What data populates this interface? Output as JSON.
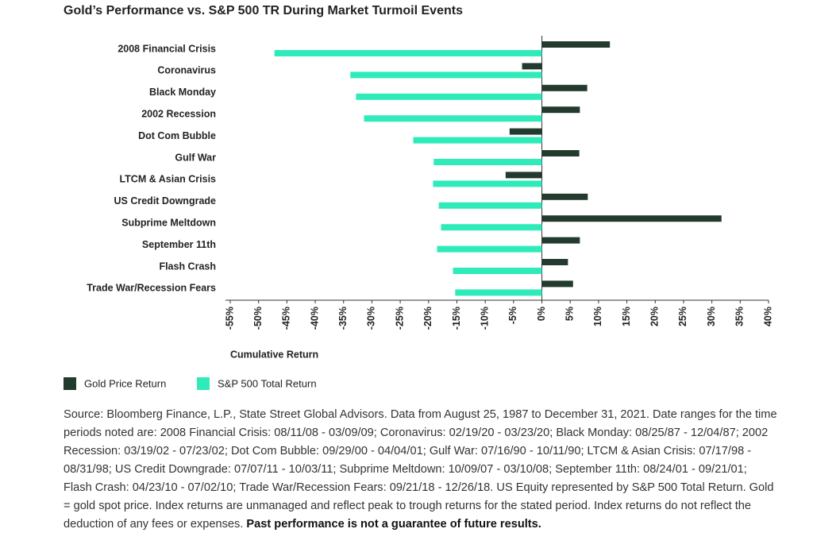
{
  "chart_data": {
    "type": "hbar",
    "title": "Gold’s Performance vs. S&P 500 TR During Market Turmoil Events",
    "categories": [
      "2008 Financial Crisis",
      "Coronavirus",
      "Black Monday",
      "2002 Recession",
      "Dot Com Bubble",
      "Gulf War",
      "LTCM & Asian Crisis",
      "US Credit Downgrade",
      "Subprime Meltdown",
      "September 11th",
      "Flash Crash",
      "Trade War/Recession Fears"
    ],
    "series": [
      {
        "name": "Gold Price Return",
        "color": "#233a2e",
        "values": [
          12,
          -3.5,
          8,
          6.7,
          -5.7,
          6.6,
          -6.4,
          8.1,
          31.7,
          6.7,
          4.6,
          5.5
        ]
      },
      {
        "name": "S&P 500 Total Return",
        "color": "#2febb9",
        "values": [
          -47.2,
          -33.8,
          -32.8,
          -31.4,
          -22.7,
          -19.1,
          -19.2,
          -18.2,
          -17.8,
          -18.5,
          -15.7,
          -15.3
        ]
      }
    ],
    "xlabel": "Cumulative Return",
    "xlim": [
      -55,
      40
    ],
    "xticks": [
      {
        "value": -55,
        "label": "-55%"
      },
      {
        "value": -50,
        "label": "-50%"
      },
      {
        "value": -45,
        "label": "-45%"
      },
      {
        "value": -40,
        "label": "-40%"
      },
      {
        "value": -35,
        "label": "-35%"
      },
      {
        "value": -30,
        "label": "-30%"
      },
      {
        "value": -25,
        "label": "-25%"
      },
      {
        "value": -20,
        "label": "-20%"
      },
      {
        "value": -15,
        "label": "-15%"
      },
      {
        "value": -10,
        "label": "-10%"
      },
      {
        "value": -5,
        "label": "-5%"
      },
      {
        "value": 0,
        "label": "0%"
      },
      {
        "value": 5,
        "label": "5%"
      },
      {
        "value": 10,
        "label": "10%"
      },
      {
        "value": 15,
        "label": "15%"
      },
      {
        "value": 20,
        "label": "20%"
      },
      {
        "value": 25,
        "label": "25%"
      },
      {
        "value": 30,
        "label": "30%"
      },
      {
        "value": 35,
        "label": "35%"
      },
      {
        "value": 40,
        "label": "40%"
      }
    ],
    "legend": "bottom-left"
  },
  "source": {
    "text": "Source: Bloomberg Finance, L.P., State Street Global Advisors. Data from August 25, 1987 to December 31, 2021. Date ranges for the time periods noted are: 2008 Financial Crisis: 08/11/08 - 03/09/09; Coronavirus: 02/19/20 - 03/23/20; Black Monday: 08/25/87 - 12/04/87; 2002 Recession: 03/19/02 - 07/23/02; Dot Com Bubble: 09/29/00 - 04/04/01; Gulf War: 07/16/90 - 10/11/90; LTCM & Asian Crisis: 07/17/98 - 08/31/98; US Credit Downgrade: 07/07/11 - 10/03/11; Subprime Meltdown: 10/09/07 - 03/10/08; September 11th: 08/24/01 - 09/21/01; Flash Crash: 04/23/10 - 07/02/10; Trade War/Recession Fears: 09/21/18 - 12/26/18. US Equity represented by S&P 500 Total Return. Gold = gold spot price. Index returns are unmanaged and reflect peak to trough returns for the stated period. Index returns do not reflect the deduction of any fees or expenses.",
    "bold": "Past performance is not a guarantee of future results."
  }
}
